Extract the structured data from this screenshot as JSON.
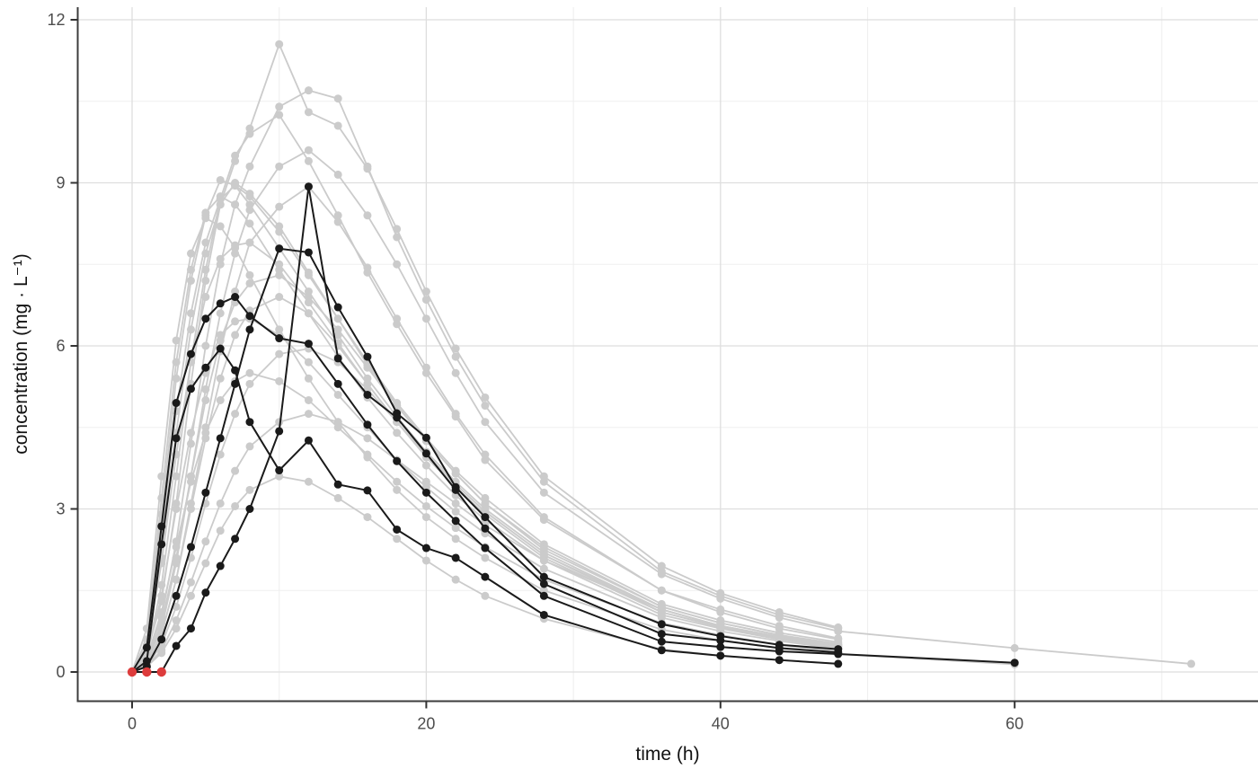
{
  "chart_data": {
    "type": "line",
    "title": "",
    "xlabel": "time (h)",
    "ylabel": "concentration (mg · L⁻¹)",
    "x_ticks": [
      0,
      20,
      40,
      60
    ],
    "x_minor_ticks": [
      10,
      30,
      50,
      70
    ],
    "y_ticks": [
      0,
      3,
      6,
      9,
      12
    ],
    "y_minor_ticks": [
      1.5,
      4.5,
      7.5,
      10.5
    ],
    "xlim": [
      -3.7,
      76.5
    ],
    "ylim": [
      -0.55,
      12.25
    ],
    "grid": true,
    "legend": "none",
    "colors": {
      "series_gray": "#cbcbcb",
      "series_black": "#1a1a1a",
      "blq_red": "#dd3c3c",
      "grid_major": "#dedede",
      "grid_minor": "#efefef",
      "axis_line": "#3c3c3c",
      "tick_mark": "#333333",
      "tick_label": "#4d4d4d",
      "axis_title": "#111111",
      "background": "#ffffff"
    },
    "t_default": [
      0,
      1,
      2,
      3,
      4,
      5,
      6,
      7,
      8,
      10,
      12,
      14,
      16,
      18,
      20,
      22,
      24,
      28,
      36,
      40,
      44,
      48
    ],
    "series": [
      {
        "name": "gray-01",
        "role": "gray",
        "y": [
          0,
          0.35,
          1.3,
          3.1,
          5.3,
          7.2,
          8.6,
          9.4,
          10.0,
          11.55,
          10.3,
          10.05,
          9.26,
          8.15,
          7.0,
          5.95,
          5.05,
          3.6,
          1.95,
          1.45,
          1.1,
          0.82
        ]
      },
      {
        "name": "gray-02",
        "role": "gray",
        "y": [
          0,
          0.25,
          1.0,
          2.4,
          4.2,
          6.0,
          7.5,
          8.6,
          9.3,
          10.4,
          10.7,
          10.55,
          9.3,
          8.0,
          6.85,
          5.8,
          4.9,
          3.5,
          1.85,
          1.4,
          1.05,
          0.8
        ]
      },
      {
        "name": "gray-03",
        "role": "gray",
        "y": [
          0,
          0.3,
          1.6,
          3.6,
          5.7,
          7.4,
          8.7,
          9.5,
          9.9,
          10.25,
          9.4,
          8.4,
          7.35,
          6.4,
          5.5,
          4.7,
          3.9,
          2.8,
          1.5,
          1.15,
          0.85,
          0.62
        ]
      },
      {
        "name": "gray-04",
        "role": "gray",
        "x": [
          0,
          1,
          2,
          3,
          4,
          5,
          6,
          7,
          8,
          10,
          12,
          14,
          16,
          18,
          20,
          22,
          24,
          28,
          36,
          40,
          44,
          48,
          60,
          72
        ],
        "y": [
          0,
          0.2,
          0.8,
          2.0,
          3.6,
          5.2,
          6.6,
          7.7,
          8.5,
          9.3,
          9.6,
          9.15,
          8.4,
          7.5,
          6.5,
          5.5,
          4.6,
          3.3,
          1.8,
          1.35,
          1.0,
          0.75,
          0.44,
          0.15
        ]
      },
      {
        "name": "gray-05",
        "role": "gray",
        "y": [
          0,
          0.5,
          2.9,
          5.4,
          7.2,
          8.4,
          9.05,
          8.95,
          8.6,
          7.8,
          7.0,
          6.2,
          5.4,
          4.7,
          4.05,
          3.5,
          3.0,
          2.2,
          1.15,
          0.85,
          0.65,
          0.5
        ]
      },
      {
        "name": "gray-06",
        "role": "gray",
        "y": [
          0,
          0.4,
          2.4,
          4.8,
          6.6,
          7.9,
          8.7,
          8.95,
          8.75,
          8.1,
          7.3,
          6.5,
          5.7,
          4.95,
          4.3,
          3.7,
          3.2,
          2.35,
          1.25,
          0.95,
          0.72,
          0.55
        ]
      },
      {
        "name": "gray-07",
        "role": "gray",
        "y": [
          0,
          0.6,
          3.2,
          5.7,
          7.4,
          8.45,
          8.75,
          8.6,
          8.25,
          7.4,
          6.6,
          5.8,
          5.05,
          4.4,
          3.8,
          3.25,
          2.8,
          2.05,
          1.05,
          0.8,
          0.6,
          0.45
        ]
      },
      {
        "name": "gray-08",
        "role": "gray",
        "y": [
          0,
          0.15,
          0.7,
          1.7,
          3.1,
          4.5,
          5.9,
          7.0,
          7.9,
          8.56,
          8.93,
          8.28,
          7.44,
          6.5,
          5.6,
          4.75,
          4.0,
          2.85,
          1.5,
          1.1,
          0.8,
          0.6
        ]
      },
      {
        "name": "gray-09",
        "role": "gray",
        "y": [
          0,
          0.35,
          2.1,
          4.4,
          6.3,
          7.7,
          8.6,
          9.0,
          8.8,
          8.2,
          7.35,
          6.5,
          5.65,
          4.9,
          4.25,
          3.65,
          3.1,
          2.3,
          1.2,
          0.9,
          0.68,
          0.52
        ]
      },
      {
        "name": "gray-10",
        "role": "gray",
        "x": [
          0,
          1,
          2,
          3,
          4,
          5,
          6,
          7,
          8,
          10,
          12,
          14,
          16,
          18,
          20,
          22,
          24,
          28,
          36,
          40,
          44,
          48,
          60
        ],
        "y": [
          0,
          0.8,
          3.6,
          6.1,
          7.7,
          8.35,
          8.2,
          7.8,
          7.3,
          6.3,
          5.4,
          4.6,
          3.95,
          3.35,
          2.85,
          2.45,
          2.1,
          1.5,
          0.78,
          0.58,
          0.44,
          0.33,
          0.14
        ]
      },
      {
        "name": "gray-11",
        "role": "gray",
        "y": [
          0,
          0.2,
          0.9,
          2.1,
          3.6,
          5.0,
          6.1,
          6.8,
          7.15,
          7.3,
          6.9,
          6.3,
          5.6,
          4.9,
          4.25,
          3.65,
          3.1,
          2.25,
          1.2,
          0.9,
          0.68,
          0.5
        ]
      },
      {
        "name": "gray-12",
        "role": "gray",
        "y": [
          0,
          0.45,
          2.0,
          4.0,
          5.7,
          6.9,
          7.6,
          7.85,
          7.9,
          7.5,
          6.8,
          6.05,
          5.3,
          4.6,
          4.0,
          3.45,
          2.95,
          2.15,
          1.1,
          0.82,
          0.62,
          0.47
        ]
      },
      {
        "name": "gray-13",
        "role": "gray",
        "y": [
          0,
          0.3,
          1.4,
          3.0,
          4.4,
          5.5,
          6.2,
          6.45,
          6.5,
          6.2,
          5.7,
          5.1,
          4.5,
          3.9,
          3.4,
          2.95,
          2.55,
          1.9,
          1.0,
          0.75,
          0.57,
          0.43
        ]
      },
      {
        "name": "gray-14",
        "role": "gray",
        "y": [
          0,
          0.15,
          0.7,
          1.7,
          3.0,
          4.3,
          5.4,
          6.2,
          6.65,
          6.9,
          6.6,
          6.0,
          5.3,
          4.6,
          3.95,
          3.4,
          2.9,
          2.1,
          1.1,
          0.83,
          0.63,
          0.48
        ]
      },
      {
        "name": "gray-15",
        "role": "gray",
        "y": [
          0,
          0.1,
          0.5,
          1.2,
          2.1,
          3.1,
          4.0,
          4.75,
          5.3,
          5.85,
          5.95,
          5.7,
          5.2,
          4.6,
          4.0,
          3.45,
          2.95,
          2.15,
          1.15,
          0.85,
          0.64,
          0.48
        ]
      },
      {
        "name": "gray-16",
        "role": "gray",
        "y": [
          0,
          0.25,
          1.1,
          2.3,
          3.5,
          4.4,
          5.0,
          5.35,
          5.5,
          5.35,
          5.0,
          4.5,
          4.0,
          3.5,
          3.05,
          2.65,
          2.3,
          1.7,
          0.9,
          0.68,
          0.5,
          0.38
        ]
      },
      {
        "name": "gray-17",
        "role": "gray",
        "y": [
          0,
          0.1,
          0.4,
          0.95,
          1.65,
          2.4,
          3.1,
          3.7,
          4.15,
          4.6,
          4.75,
          4.6,
          4.3,
          3.9,
          3.5,
          3.1,
          2.7,
          2.05,
          1.15,
          0.85,
          0.65,
          0.5
        ]
      },
      {
        "name": "gray-18",
        "role": "gray",
        "y": [
          0,
          0.1,
          0.35,
          0.8,
          1.4,
          2.0,
          2.6,
          3.05,
          3.35,
          3.6,
          3.5,
          3.2,
          2.85,
          2.45,
          2.05,
          1.7,
          1.4,
          0.98,
          0.42,
          0.3,
          0.22,
          0.15
        ]
      },
      {
        "name": "highlight-1",
        "role": "black",
        "x": [
          0,
          1,
          2,
          3,
          4,
          5,
          6,
          7,
          8,
          10,
          12,
          14,
          16,
          18,
          20,
          22,
          24,
          28,
          36,
          40,
          44,
          48,
          60
        ],
        "y": [
          0,
          0.45,
          2.68,
          4.95,
          5.85,
          6.5,
          6.78,
          6.9,
          6.55,
          6.14,
          6.04,
          5.3,
          4.55,
          3.88,
          3.3,
          2.78,
          2.28,
          1.4,
          0.56,
          0.46,
          0.38,
          0.33,
          0.17
        ]
      },
      {
        "name": "highlight-2",
        "role": "black",
        "y": [
          0,
          0.2,
          2.35,
          4.3,
          5.21,
          5.6,
          5.95,
          5.55,
          4.6,
          3.71,
          4.26,
          3.45,
          3.34,
          2.62,
          2.28,
          2.1,
          1.75,
          1.05,
          0.4,
          0.3,
          0.22,
          0.15
        ]
      },
      {
        "name": "highlight-3",
        "role": "black",
        "y": [
          0,
          0.1,
          0.6,
          1.4,
          2.3,
          3.3,
          4.3,
          5.3,
          6.3,
          7.79,
          7.72,
          6.71,
          5.8,
          4.76,
          4.31,
          3.4,
          2.85,
          1.75,
          0.88,
          0.66,
          0.5,
          0.42
        ]
      },
      {
        "name": "highlight-4",
        "role": "black",
        "y": [
          0,
          0,
          0,
          0.48,
          0.8,
          1.46,
          1.95,
          2.45,
          3.0,
          4.43,
          8.93,
          5.77,
          5.1,
          4.68,
          4.02,
          3.35,
          2.64,
          1.62,
          0.7,
          0.58,
          0.44,
          0.36
        ]
      }
    ],
    "blq_points": {
      "x": [
        0,
        1,
        2
      ],
      "y": [
        0,
        0,
        0
      ]
    }
  }
}
